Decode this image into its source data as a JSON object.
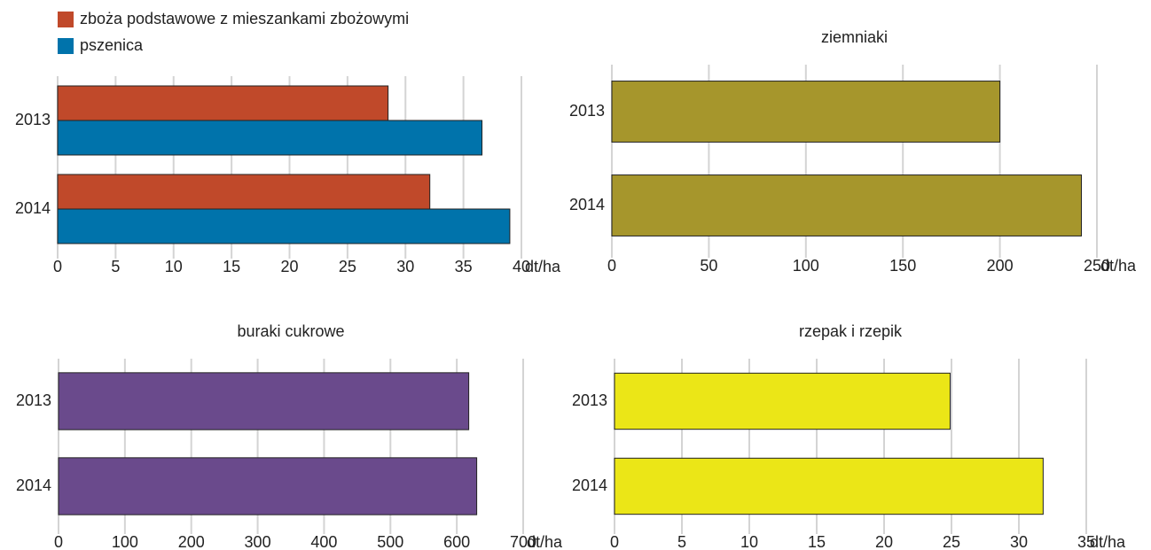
{
  "chart_data": [
    {
      "type": "bar",
      "orientation": "horizontal",
      "categories": [
        "2013",
        "2014"
      ],
      "series": [
        {
          "name": "zboża podstawowe z mieszankami zbożowymi",
          "color": "#c0492a",
          "values": [
            28.5,
            32.1
          ]
        },
        {
          "name": "pszenica",
          "color": "#0073ab",
          "values": [
            36.6,
            39.0
          ]
        }
      ],
      "xlim": [
        0,
        40
      ],
      "xticks": [
        0,
        5,
        10,
        15,
        20,
        25,
        30,
        35,
        40
      ],
      "xlabel": "dt/ha",
      "grid": true
    },
    {
      "type": "bar",
      "orientation": "horizontal",
      "title": "ziemniaki",
      "categories": [
        "2013",
        "2014"
      ],
      "values": [
        200,
        242
      ],
      "color": "#a6962c",
      "xlim": [
        0,
        250
      ],
      "xticks": [
        0,
        50,
        100,
        150,
        200,
        250
      ],
      "xlabel": "dt/ha",
      "grid": true
    },
    {
      "type": "bar",
      "orientation": "horizontal",
      "title": "buraki cukrowe",
      "categories": [
        "2013",
        "2014"
      ],
      "values": [
        618,
        630
      ],
      "color": "#6a4a8c",
      "xlim": [
        0,
        700
      ],
      "xticks": [
        0,
        100,
        200,
        300,
        400,
        500,
        600,
        700
      ],
      "xlabel": "dt/ha",
      "grid": true
    },
    {
      "type": "bar",
      "orientation": "horizontal",
      "title": "rzepak i rzepik",
      "categories": [
        "2013",
        "2014"
      ],
      "values": [
        24.9,
        31.8
      ],
      "color": "#ebe617",
      "xlim": [
        0,
        35
      ],
      "xticks": [
        0,
        5,
        10,
        15,
        20,
        25,
        30,
        35
      ],
      "xlabel": "dt/ha",
      "grid": true
    }
  ]
}
